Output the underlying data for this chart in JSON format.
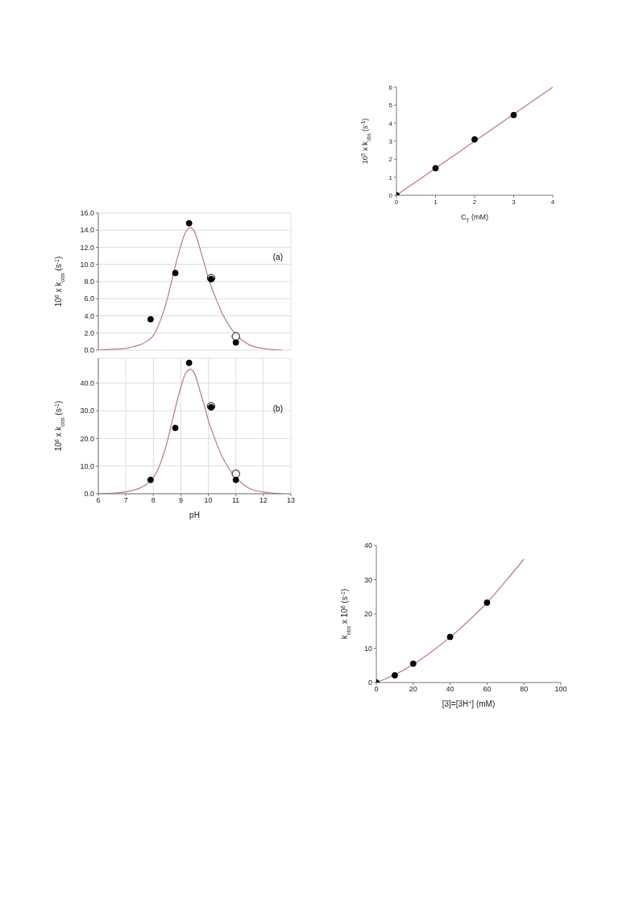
{
  "chart_data": [
    {
      "type": "scatter",
      "xlabel": "C$_{T}$ (mM)",
      "ylabel": "10$^{5}$ x k$_{obs}$ (s$^{-1}$)",
      "xlim": [
        0,
        4
      ],
      "ylim": [
        0,
        6
      ],
      "xticks": [
        0,
        1,
        2,
        3,
        4
      ],
      "yticks": [
        0,
        1,
        2,
        3,
        4,
        5,
        6
      ],
      "grid": false,
      "marker": "circle",
      "series": [
        {
          "type": "line",
          "color": "#c07878",
          "marker": "none",
          "x": [
            0,
            4
          ],
          "values": [
            0,
            6
          ]
        },
        {
          "color": "#000000",
          "x": [
            0,
            1,
            2,
            3
          ],
          "values": [
            0,
            1.5,
            3.1,
            4.45
          ]
        }
      ]
    },
    {
      "type": "scatter",
      "ylabel": "10$^{6}$ x k$_{obs}$ (s$^{-1}$)",
      "annotations": [
        "(a)"
      ],
      "xlim": [
        6,
        13
      ],
      "ylim": [
        0,
        16
      ],
      "xticks": [
        6,
        7,
        8,
        9,
        10,
        11,
        12,
        13
      ],
      "yticks": [
        {
          "value": 0,
          "label": "0.0"
        },
        {
          "value": 2,
          "label": "2.0"
        },
        {
          "value": 4,
          "label": "4.0"
        },
        {
          "value": 6,
          "label": "6.0"
        },
        {
          "value": 8,
          "label": "8.0"
        },
        {
          "value": 10,
          "label": "10.0"
        },
        {
          "value": 12,
          "label": "12.0"
        },
        {
          "value": 14,
          "label": "14.0"
        },
        {
          "value": 16,
          "label": "16.0"
        }
      ],
      "tick_labels": "y",
      "grid": true,
      "marker": "circle",
      "series": [
        {
          "type": "line",
          "color": "#c07878",
          "x": [
            6,
            6.5,
            7,
            7.25,
            7.5,
            7.75,
            8,
            8.25,
            8.5,
            8.75,
            9,
            9.15,
            9.35,
            9.5,
            9.7,
            9.85,
            10,
            10.25,
            10.5,
            10.75,
            11,
            11.25,
            11.5,
            12,
            12.7
          ],
          "marker": "none",
          "values": [
            0,
            0.1,
            0.2,
            0.4,
            0.6,
            1.0,
            1.7,
            3.4,
            5.9,
            9.2,
            12.2,
            13.6,
            14.3,
            13.8,
            11.8,
            10.1,
            8.4,
            6.2,
            4.3,
            2.9,
            1.8,
            1.1,
            0.6,
            0.2,
            0
          ]
        },
        {
          "color": "#ffffff",
          "x": [
            10.1,
            11
          ],
          "values": [
            8.4,
            1.6
          ]
        },
        {
          "color": "#000000",
          "x": [
            7.9,
            8.8,
            9.3,
            10.1,
            11
          ],
          "values": [
            3.6,
            9.0,
            14.8,
            8.3,
            0.9
          ]
        }
      ]
    },
    {
      "type": "scatter",
      "xlabel": "pH",
      "ylabel": "10$^{6}$ x k$_{obs}$ (s$^{-1}$)",
      "annotations": [
        "(b)"
      ],
      "xlim": [
        6,
        13
      ],
      "ylim": [
        0,
        49
      ],
      "xticks": [
        6,
        7,
        8,
        9,
        10,
        11,
        12,
        13
      ],
      "yticks": [
        {
          "value": 0,
          "label": "0.0"
        },
        {
          "value": 10,
          "label": "10.0"
        },
        {
          "value": 20,
          "label": "20.0"
        },
        {
          "value": 30,
          "label": "30.0"
        },
        {
          "value": 40,
          "label": "40.0"
        }
      ],
      "grid": true,
      "marker": "circle",
      "series": [
        {
          "type": "line",
          "color": "#c07878",
          "x": [
            6,
            6.5,
            7,
            7.25,
            7.5,
            7.75,
            8,
            8.25,
            8.5,
            8.75,
            9,
            9.15,
            9.35,
            9.5,
            9.7,
            9.85,
            10,
            10.25,
            10.5,
            10.75,
            11,
            11.25,
            11.5,
            12,
            12.7
          ],
          "marker": "none",
          "values": [
            0,
            0.2,
            0.7,
            1.2,
            2,
            3.4,
            5.8,
            10.8,
            18.6,
            29,
            38.5,
            43,
            45,
            43.5,
            37,
            32,
            26.5,
            19.5,
            13.5,
            9.1,
            5.7,
            3.5,
            1.9,
            0.6,
            0
          ]
        },
        {
          "color": "#ffffff",
          "x": [
            10.1,
            11
          ],
          "values": [
            31.6,
            7.2
          ]
        },
        {
          "color": "#000000",
          "x": [
            7.9,
            8.8,
            9.3,
            10.1,
            11
          ],
          "values": [
            5.0,
            23.8,
            47.3,
            31.3,
            5.0
          ]
        }
      ]
    },
    {
      "type": "scatter",
      "xlabel": "[3]=[3H$^{+}$] (mM)",
      "ylabel": "k$_{obs}$ x 10$^{6}$ (s$^{-1}$)",
      "xlim": [
        0,
        100
      ],
      "ylim": [
        0,
        40
      ],
      "xticks": [
        0,
        20,
        40,
        60,
        80,
        100
      ],
      "yticks": [
        0,
        10,
        20,
        30,
        40
      ],
      "grid": false,
      "marker": "circle",
      "series": [
        {
          "type": "line",
          "color": "#c07878",
          "marker": "none",
          "x": [
            0,
            10,
            20,
            30,
            40,
            50,
            60,
            70,
            80
          ],
          "values": [
            0,
            2.3,
            5.3,
            9,
            13.2,
            18,
            23.3,
            29.5,
            36
          ]
        },
        {
          "color": "#000000",
          "x": [
            0,
            10,
            20,
            40,
            60
          ],
          "values": [
            0,
            2.1,
            5.5,
            13.3,
            23.3
          ]
        }
      ]
    }
  ]
}
